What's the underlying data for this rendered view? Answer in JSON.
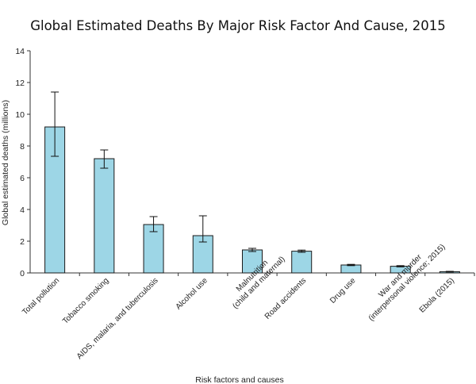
{
  "chart_data": {
    "type": "bar",
    "title": "Global Estimated Deaths By Major Risk Factor And Cause, 2015",
    "xlabel": "Risk factors and causes",
    "ylabel": "Global estimated deaths (millions)",
    "ylim": [
      0,
      14
    ],
    "yticks": [
      "0",
      "2",
      "4",
      "6",
      "8",
      "10",
      "12",
      "14"
    ],
    "grid": false,
    "categories": [
      [
        "Total pollution"
      ],
      [
        "Tobacco smoking"
      ],
      [
        "AIDS, malaria, and tuberculosis"
      ],
      [
        "Alcohol use"
      ],
      [
        "Malnutrition",
        "(child and maternal)"
      ],
      [
        "Road accidents"
      ],
      [
        "Drug use"
      ],
      [
        "War and murder",
        "(interpersonal violence; 2015)"
      ],
      [
        "Ebola (2015)"
      ]
    ],
    "values": [
      9.2,
      7.2,
      3.05,
      2.35,
      1.45,
      1.37,
      0.5,
      0.42,
      0.08
    ],
    "error_low": [
      7.35,
      6.6,
      2.6,
      1.95,
      1.35,
      1.3,
      0.46,
      0.38,
      0.06
    ],
    "error_high": [
      11.4,
      7.75,
      3.55,
      3.6,
      1.55,
      1.44,
      0.54,
      0.46,
      0.1
    ],
    "colors": {
      "bar_fill": "#9dd6e6",
      "bar_stroke": "#1a1a1a",
      "axis": "#333333"
    }
  }
}
